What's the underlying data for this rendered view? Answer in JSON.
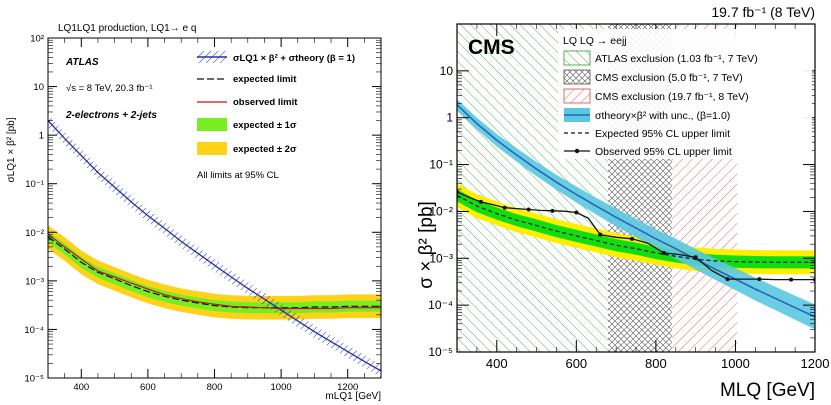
{
  "chart_data": [
    {
      "type": "line",
      "title": "LQ1LQ1 production, LQ1→ e q",
      "experiment": "ATLAS",
      "energy_label": "√s = 8 TeV, 20.3 fb⁻¹",
      "channel_label": "2-electrons + 2-jets",
      "note": "All limits at 95% CL",
      "ylabel": "σLQ1 × β² [pb]",
      "xlabel": "mLQ1 [GeV]",
      "xlim": [
        300,
        1300
      ],
      "ylim": [
        1e-05,
        100
      ],
      "yscale": "log",
      "xticks": [
        400,
        600,
        800,
        1000,
        1200
      ],
      "yticks": [
        {
          "v": 1e-05,
          "label": "10⁻⁵"
        },
        {
          "v": 0.0001,
          "label": "10⁻⁴"
        },
        {
          "v": 0.001,
          "label": "10⁻³"
        },
        {
          "v": 0.01,
          "label": "10⁻²"
        },
        {
          "v": 0.1,
          "label": "10⁻¹"
        },
        {
          "v": 1,
          "label": "1"
        },
        {
          "v": 10,
          "label": "10"
        },
        {
          "v": 100,
          "label": "10²"
        }
      ],
      "legend": [
        {
          "key": "theory",
          "label": "σLQ1 × β² + σtheory (β = 1)"
        },
        {
          "key": "expected",
          "label": "expected limit"
        },
        {
          "key": "observed",
          "label": "observed limit"
        },
        {
          "key": "band1",
          "label": "expected ± 1σ"
        },
        {
          "key": "band2",
          "label": "expected ± 2σ"
        }
      ],
      "colors": {
        "theory": "#2233aa",
        "observed": "#cc1111",
        "expected": "#111111",
        "band1": "#77ee22",
        "band2": "#ffd21a"
      },
      "x": [
        300,
        350,
        400,
        450,
        500,
        550,
        600,
        650,
        700,
        750,
        800,
        850,
        900,
        950,
        1000,
        1050,
        1100,
        1150,
        1200,
        1250,
        1300
      ],
      "theory": [
        2.0,
        0.85,
        0.38,
        0.17,
        0.085,
        0.042,
        0.022,
        0.012,
        0.0065,
        0.0037,
        0.0021,
        0.0012,
        0.0007,
        0.00042,
        0.00025,
        0.00015,
        9e-05,
        5.6e-05,
        3.5e-05,
        2.2e-05,
        1.4e-05
      ],
      "expected": [
        0.008,
        0.0045,
        0.0024,
        0.0015,
        0.0011,
        0.0008,
        0.0006,
        0.00048,
        0.0004,
        0.00035,
        0.00031,
        0.00029,
        0.00028,
        0.00028,
        0.00028,
        0.00028,
        0.00029,
        0.00029,
        0.0003,
        0.0003,
        0.0003
      ],
      "observed": [
        0.009,
        0.005,
        0.0028,
        0.0016,
        0.0012,
        0.0009,
        0.00068,
        0.00052,
        0.00043,
        0.00037,
        0.00033,
        0.0003,
        0.00029,
        0.00028,
        0.00027,
        0.00027,
        0.00027,
        0.00027,
        0.00028,
        0.00028,
        0.00028
      ],
      "band1_factor": 1.3,
      "band2_factor": 1.75
    },
    {
      "type": "line",
      "experiment": "CMS",
      "lumi_label": "19.7 fb⁻¹ (8 TeV)",
      "ylabel": "σ × β² [pb]",
      "xlabel": "MLQ [GeV]",
      "xlim": [
        300,
        1200
      ],
      "ylim": [
        1e-05,
        100
      ],
      "yscale": "log",
      "xticks": [
        400,
        600,
        800,
        1000,
        1200
      ],
      "yticks": [
        {
          "v": 1e-05,
          "label": "10⁻⁵"
        },
        {
          "v": 0.0001,
          "label": "10⁻⁴"
        },
        {
          "v": 0.001,
          "label": "10⁻³"
        },
        {
          "v": 0.01,
          "label": "10⁻²"
        },
        {
          "v": 0.1,
          "label": "10⁻¹"
        },
        {
          "v": 1,
          "label": "1"
        },
        {
          "v": 10,
          "label": "10"
        }
      ],
      "legend_title": "LQ LQ → eejj",
      "legend": [
        {
          "key": "atlas_excl",
          "label": "ATLAS exclusion (1.03 fb⁻¹, 7 TeV)"
        },
        {
          "key": "cms5_excl",
          "label": "CMS exclusion (5.0 fb⁻¹, 7 TeV)"
        },
        {
          "key": "cms19_excl",
          "label": "CMS exclusion (19.7 fb⁻¹, 8 TeV)"
        },
        {
          "key": "theory",
          "label": "σtheory×β² with unc., (β=1.0)"
        },
        {
          "key": "expected",
          "label": "Expected 95% CL upper limit"
        },
        {
          "key": "observed",
          "label": "Observed 95% CL upper limit"
        }
      ],
      "exclusions": [
        {
          "key": "atlas_excl",
          "from": 300,
          "to": 680,
          "color": "#2ea02e"
        },
        {
          "key": "cms5_excl",
          "from": 680,
          "to": 840,
          "color": "#555555"
        },
        {
          "key": "cms19_excl",
          "from": 840,
          "to": 1005,
          "color": "#dd4444"
        }
      ],
      "colors": {
        "theory": "#3399cc",
        "theory_band": "#5bc8e0",
        "band1": "#11dd11",
        "band2": "#ffee00",
        "observed": "#111111",
        "expected": "#111111"
      },
      "x": [
        300,
        350,
        400,
        450,
        500,
        550,
        600,
        650,
        700,
        750,
        800,
        850,
        900,
        950,
        1000,
        1050,
        1100,
        1150,
        1200
      ],
      "theory": [
        1.9,
        0.75,
        0.33,
        0.16,
        0.08,
        0.042,
        0.023,
        0.013,
        0.0075,
        0.0044,
        0.0026,
        0.0016,
        0.00095,
        0.00058,
        0.00036,
        0.00022,
        0.00014,
        8.8e-05,
        5.6e-05
      ],
      "theory_unc": 1.3,
      "expected": [
        0.022,
        0.013,
        0.009,
        0.0065,
        0.005,
        0.0038,
        0.003,
        0.0024,
        0.0019,
        0.0016,
        0.0013,
        0.0011,
        0.00095,
        0.00088,
        0.00085,
        0.00083,
        0.00082,
        0.00082,
        0.00082
      ],
      "band1_factor": 1.35,
      "band2_factor": 1.8,
      "observed": [
        [
          300,
          0.026
        ],
        [
          330,
          0.02
        ],
        [
          360,
          0.016
        ],
        [
          390,
          0.014
        ],
        [
          420,
          0.012
        ],
        [
          450,
          0.0115
        ],
        [
          480,
          0.011
        ],
        [
          510,
          0.0105
        ],
        [
          540,
          0.0103
        ],
        [
          570,
          0.0101
        ],
        [
          600,
          0.0095
        ],
        [
          630,
          0.0072
        ],
        [
          660,
          0.0032
        ],
        [
          700,
          0.0028
        ],
        [
          740,
          0.0026
        ],
        [
          780,
          0.0021
        ],
        [
          820,
          0.0013
        ],
        [
          860,
          0.0012
        ],
        [
          900,
          0.00105
        ],
        [
          940,
          0.00055
        ],
        [
          980,
          0.00036
        ],
        [
          1020,
          0.00036
        ],
        [
          1060,
          0.00036
        ],
        [
          1100,
          0.00035
        ],
        [
          1140,
          0.00035
        ],
        [
          1180,
          0.00035
        ],
        [
          1200,
          0.00035
        ]
      ]
    }
  ]
}
